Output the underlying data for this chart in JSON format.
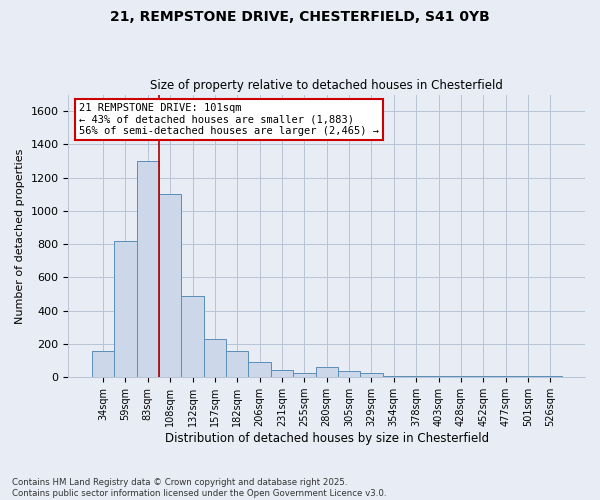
{
  "title_line1": "21, REMPSTONE DRIVE, CHESTERFIELD, S41 0YB",
  "title_line2": "Size of property relative to detached houses in Chesterfield",
  "xlabel": "Distribution of detached houses by size in Chesterfield",
  "ylabel": "Number of detached properties",
  "footnote": "Contains HM Land Registry data © Crown copyright and database right 2025.\nContains public sector information licensed under the Open Government Licence v3.0.",
  "categories": [
    "34sqm",
    "59sqm",
    "83sqm",
    "108sqm",
    "132sqm",
    "157sqm",
    "182sqm",
    "206sqm",
    "231sqm",
    "255sqm",
    "280sqm",
    "305sqm",
    "329sqm",
    "354sqm",
    "378sqm",
    "403sqm",
    "428sqm",
    "452sqm",
    "477sqm",
    "501sqm",
    "526sqm"
  ],
  "values": [
    160,
    820,
    1300,
    1100,
    490,
    230,
    160,
    90,
    45,
    25,
    60,
    40,
    25,
    10,
    5,
    10,
    5,
    5,
    5,
    5,
    5
  ],
  "bar_color": "#ccd8ea",
  "bar_edge_color": "#5b8db8",
  "grid_color": "#b8c4d4",
  "background_color": "#e8edf5",
  "vline_color": "#aa0000",
  "vline_x": 2.5,
  "annotation_text": "21 REMPSTONE DRIVE: 101sqm\n← 43% of detached houses are smaller (1,883)\n56% of semi-detached houses are larger (2,465) →",
  "ylim": [
    0,
    1700
  ],
  "yticks": [
    0,
    200,
    400,
    600,
    800,
    1000,
    1200,
    1400,
    1600
  ]
}
